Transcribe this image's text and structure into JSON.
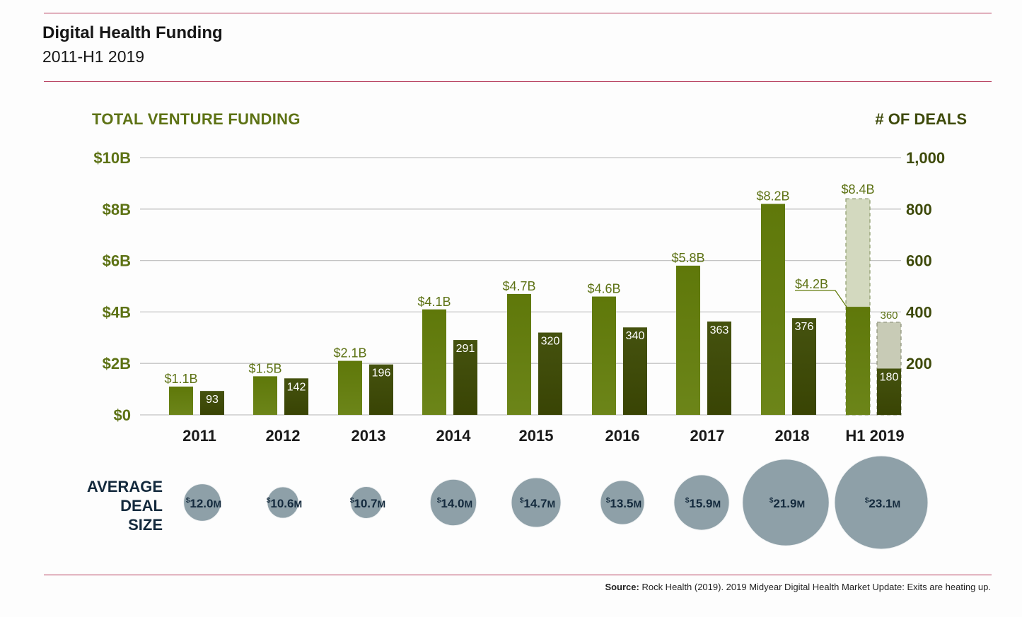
{
  "header": {
    "title": "Digital Health Funding",
    "subtitle": "2011-H1 2019"
  },
  "axes": {
    "left_title": "TOTAL VENTURE FUNDING",
    "right_title": "# OF DEALS",
    "left_ticks": [
      "$0",
      "$2B",
      "$4B",
      "$6B",
      "$8B",
      "$10B"
    ],
    "right_ticks": [
      "200",
      "400",
      "600",
      "800",
      "1,000"
    ]
  },
  "avg_deal_label": [
    "AVERAGE",
    "DEAL",
    "SIZE"
  ],
  "source": {
    "prefix": "Source:",
    "text": " Rock Health (2019). 2019 Midyear Digital Health Market Update: Exits are heating up."
  },
  "colors": {
    "funding": "#647d10",
    "deals": "#3f4a08",
    "projected_funding": "#d3d9bf",
    "projected_deals": "#c8cbb6",
    "bubble": "#8ea0a8",
    "rule": "#b5395a",
    "grid": "#c4c4c4"
  },
  "chart_data": {
    "type": "bar",
    "title": "Digital Health Funding",
    "subtitle": "2011-H1 2019",
    "categories": [
      "2011",
      "2012",
      "2013",
      "2014",
      "2015",
      "2016",
      "2017",
      "2018",
      "H1 2019"
    ],
    "series": [
      {
        "name": "Total Venture Funding ($B)",
        "axis": "left",
        "values": [
          1.1,
          1.5,
          2.1,
          4.1,
          4.7,
          4.6,
          5.8,
          8.2,
          4.2
        ],
        "labels": [
          "$1.1B",
          "$1.5B",
          "$2.1B",
          "$4.1B",
          "$4.7B",
          "$4.6B",
          "$5.8B",
          "$8.2B",
          "$4.2B"
        ]
      },
      {
        "name": "# of Deals",
        "axis": "right",
        "values": [
          93,
          142,
          196,
          291,
          320,
          340,
          363,
          376,
          180
        ],
        "labels": [
          "93",
          "142",
          "196",
          "291",
          "320",
          "340",
          "363",
          "376",
          "180"
        ]
      }
    ],
    "projections": {
      "category": "H1 2019",
      "funding": {
        "value": 8.4,
        "label": "$8.4B"
      },
      "deals": {
        "value": 360,
        "label": "360"
      }
    },
    "average_deal_size": {
      "label": "AVERAGE DEAL SIZE",
      "values": [
        12.0,
        10.6,
        10.7,
        14.0,
        14.7,
        13.5,
        15.9,
        21.9,
        23.1
      ],
      "labels": [
        "12.0",
        "10.6",
        "10.7",
        "14.0",
        "14.7",
        "13.5",
        "15.9",
        "21.9",
        "23.1"
      ],
      "unit_prefix": "$",
      "unit_suffix": "M"
    },
    "ylabel_left": "TOTAL VENTURE FUNDING",
    "ylabel_right": "# OF DEALS",
    "ylim_left": [
      0,
      10
    ],
    "ylim_right": [
      0,
      1000
    ],
    "grid": true
  }
}
